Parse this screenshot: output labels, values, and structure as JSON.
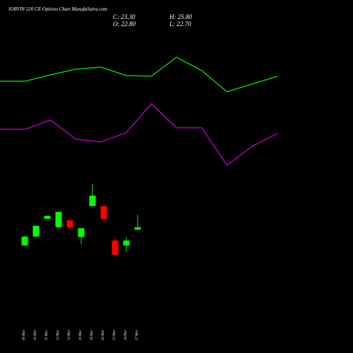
{
  "chart_data": [
    {
      "type": "candlestick",
      "title": "IOBVIN 220 CE Options Chart MunafaSutra.com",
      "header": {
        "c_label": "C: 23.30",
        "h_label": "H: 25.80",
        "o_label": "O: 22.80",
        "l_label": "L: 22.70"
      },
      "categories": [
        "09 Mar",
        "10 Mar",
        "11 Mar",
        "12 Mar",
        "13 Mar",
        "16 Mar",
        "18 Mar",
        "20 Mar",
        "23 Mar",
        "24 Mar",
        "27 Mar"
      ],
      "open": [
        19.6,
        21.4,
        25.0,
        23.3,
        24.7,
        21.3,
        27.6,
        27.6,
        20.6,
        19.6,
        22.8
      ],
      "high": [
        21.5,
        23.6,
        25.6,
        26.5,
        24.8,
        23.1,
        32.1,
        27.6,
        21.2,
        21.3,
        25.8
      ],
      "low": [
        19.5,
        21.4,
        25.0,
        23.2,
        22.8,
        19.9,
        27.6,
        25.0,
        17.7,
        18.4,
        22.7
      ],
      "close": [
        21.4,
        23.6,
        25.6,
        26.4,
        23.3,
        23.1,
        29.7,
        25.0,
        17.7,
        20.6,
        23.3
      ],
      "up_color": "#00ff00",
      "down_color": "#ff0000",
      "ylim": [
        16.4,
        33.6
      ]
    },
    {
      "type": "line",
      "series": [
        {
          "color": "#00ee00",
          "values": [
            72.5,
            72.5,
            77,
            81,
            82.5,
            76.5,
            76,
            89.5,
            80,
            65,
            70.5,
            76
          ]
        },
        {
          "color": "#cc00cc",
          "values": [
            38.5,
            38.5,
            45,
            31.5,
            29.5,
            36,
            56.5,
            39.5,
            39.5,
            13,
            26.5,
            35.5
          ]
        }
      ],
      "ylim": [
        0,
        100
      ]
    }
  ]
}
